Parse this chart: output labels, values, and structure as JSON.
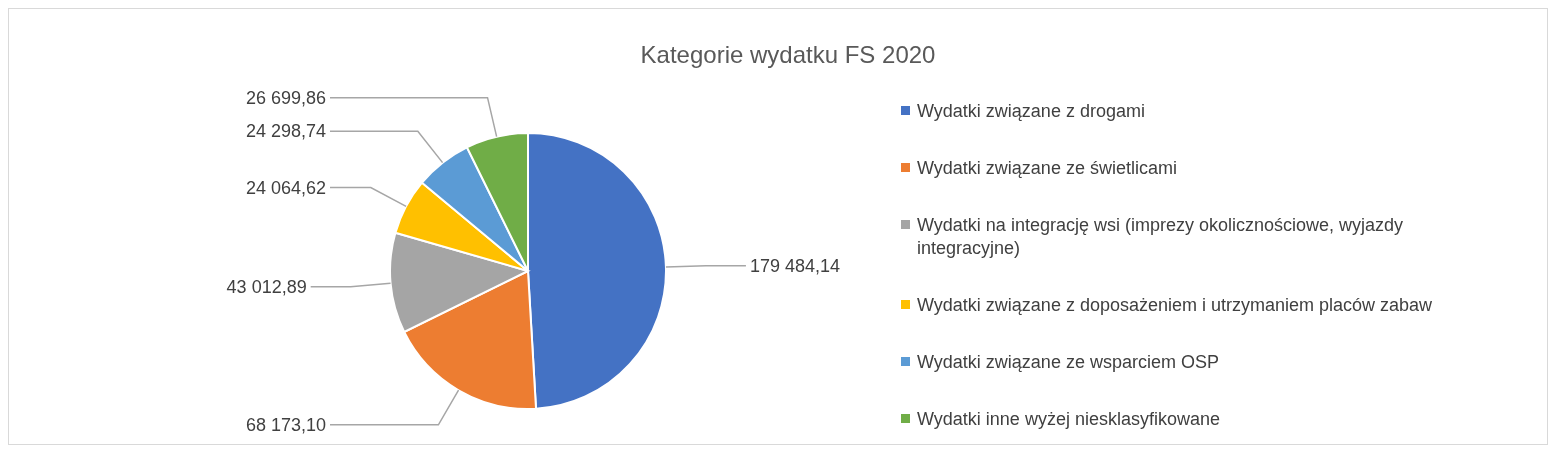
{
  "chart_data": {
    "type": "pie",
    "title": "Kategorie wydatku FS 2020",
    "categories": [
      "Wydatki związane z drogami",
      "Wydatki związane ze świetlicami",
      "Wydatki na integrację wsi (imprezy okolicznościowe, wyjazdy integracyjne)",
      "Wydatki związane z doposażeniem i utrzymaniem placów zabaw",
      "Wydatki związane ze wsparciem OSP",
      "Wydatki inne wyżej niesklasyfikowane"
    ],
    "values": [
      179484.14,
      68173.1,
      43012.89,
      24064.62,
      24298.74,
      26699.86
    ],
    "value_labels": [
      "179 484,14",
      "68 173,10",
      "43 012,89",
      "24 064,62",
      "24 298,74",
      "26 699,86"
    ],
    "colors": [
      "#4472c4",
      "#ed7d31",
      "#a5a5a5",
      "#ffc000",
      "#5b9bd5",
      "#70ad47"
    ],
    "legend": "right"
  }
}
